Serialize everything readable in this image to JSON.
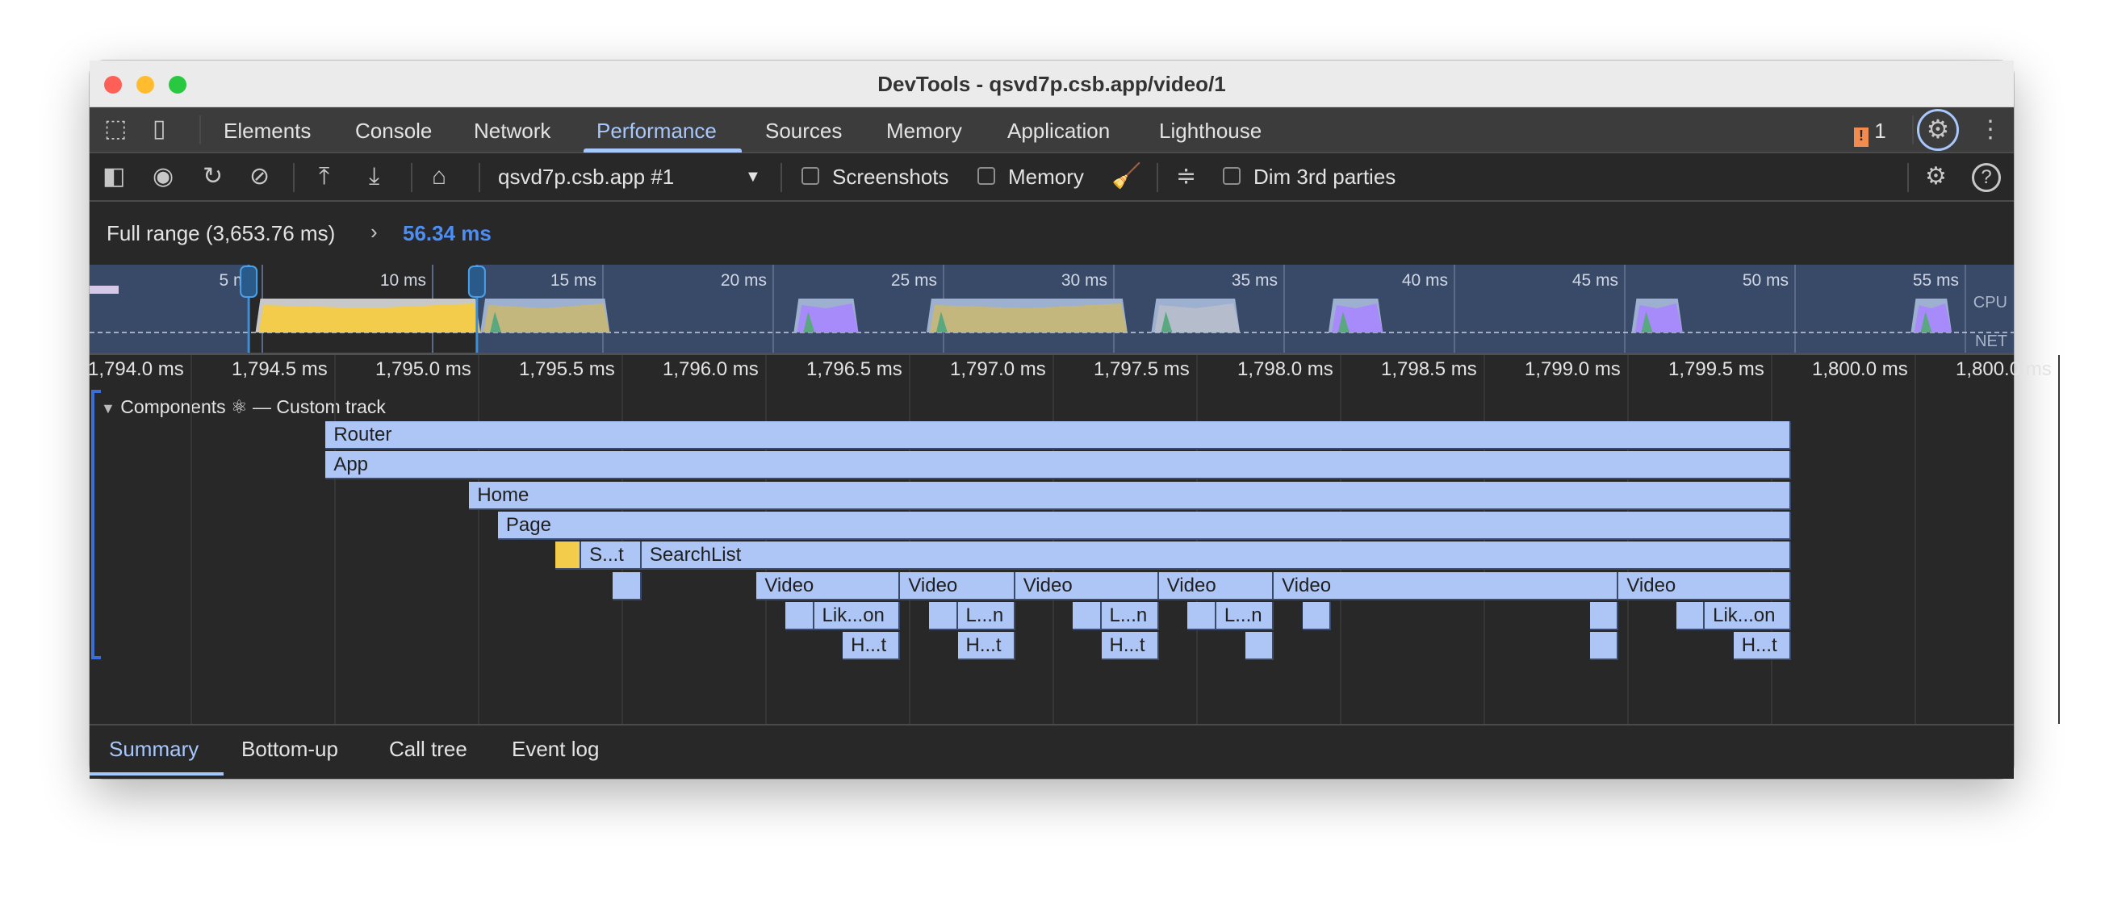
{
  "window": {
    "title": "DevTools - qsvd7p.csb.app/video/1",
    "traffic_lights": [
      "#fe5f57",
      "#febc2e",
      "#28c840"
    ]
  },
  "tabs": [
    {
      "label": "Elements"
    },
    {
      "label": "Console"
    },
    {
      "label": "Network"
    },
    {
      "label": "Performance",
      "active": true
    },
    {
      "label": "Sources"
    },
    {
      "label": "Memory"
    },
    {
      "label": "Application"
    },
    {
      "label": "Lighthouse"
    }
  ],
  "issues": {
    "count": "1",
    "color": "#f28b50"
  },
  "toolbar": {
    "target": "qsvd7p.csb.app #1",
    "screenshots": "Screenshots",
    "memory": "Memory",
    "dim": "Dim 3rd parties"
  },
  "breadcrumb": {
    "full": "Full range (3,653.76 ms)",
    "sep": "›",
    "current": "56.34 ms",
    "current_color": "#4c8df6"
  },
  "overview": {
    "ticks": [
      "5 ms",
      "10 ms",
      "15 ms",
      "20 ms",
      "25 ms",
      "30 ms",
      "35 ms",
      "40 ms",
      "45 ms",
      "50 ms",
      "55 ms"
    ],
    "cpu_label": "CPU",
    "net_label": "NET",
    "selection_ms": [
      4.6,
      11.3
    ],
    "activity": [
      {
        "from": 4.8,
        "to": 11.4,
        "color": "#f2cc4a"
      },
      {
        "from": 11.4,
        "to": 15.2,
        "color": "#c3b77d"
      },
      {
        "from": 20.6,
        "to": 22.5,
        "color": "#a78bfa"
      },
      {
        "from": 24.5,
        "to": 30.4,
        "color": "#c3b77d"
      },
      {
        "from": 31.1,
        "to": 33.7,
        "color": "#b5bccb"
      },
      {
        "from": 36.3,
        "to": 37.9,
        "color": "#a78bfa"
      },
      {
        "from": 45.2,
        "to": 46.7,
        "color": "#a78bfa"
      },
      {
        "from": 53.4,
        "to": 54.6,
        "color": "#a78bfa"
      }
    ]
  },
  "ruler": {
    "ticks": [
      "1,794.0 ms",
      "1,794.5 ms",
      "1,795.0 ms",
      "1,795.5 ms",
      "1,796.0 ms",
      "1,796.5 ms",
      "1,797.0 ms",
      "1,797.5 ms",
      "1,798.0 ms",
      "1,798.5 ms",
      "1,799.0 ms",
      "1,799.5 ms",
      "1,800.0 ms",
      "1,800.0 ms"
    ]
  },
  "track": {
    "title": "Components ⚛ — Custom track",
    "bars": [
      {
        "label": "Router",
        "depth": 0,
        "start": 1794.47,
        "end": 1799.57
      },
      {
        "label": "App",
        "depth": 1,
        "start": 1794.47,
        "end": 1799.57
      },
      {
        "label": "Home",
        "depth": 2,
        "start": 1794.97,
        "end": 1799.57
      },
      {
        "label": "Page",
        "depth": 3,
        "start": 1795.07,
        "end": 1799.57
      },
      {
        "label": "",
        "depth": 4,
        "start": 1795.27,
        "end": 1795.36,
        "color": "#f2cc4a"
      },
      {
        "label": "S...t",
        "depth": 4,
        "start": 1795.36,
        "end": 1795.57
      },
      {
        "label": "SearchList",
        "depth": 4,
        "start": 1795.57,
        "end": 1799.57
      },
      {
        "label": "",
        "depth": 5,
        "start": 1795.47,
        "end": 1795.57
      },
      {
        "label": "Video",
        "depth": 5,
        "start": 1795.97,
        "end": 1796.47
      },
      {
        "label": "Video",
        "depth": 5,
        "start": 1796.47,
        "end": 1796.87
      },
      {
        "label": "Video",
        "depth": 5,
        "start": 1796.87,
        "end": 1797.37
      },
      {
        "label": "Video",
        "depth": 5,
        "start": 1797.37,
        "end": 1797.77
      },
      {
        "label": "Video",
        "depth": 5,
        "start": 1797.77,
        "end": 1798.97
      },
      {
        "label": "Video",
        "depth": 5,
        "start": 1798.97,
        "end": 1799.57
      },
      {
        "label": "",
        "depth": 6,
        "start": 1796.07,
        "end": 1796.17
      },
      {
        "label": "Lik...on",
        "depth": 6,
        "start": 1796.17,
        "end": 1796.47
      },
      {
        "label": "",
        "depth": 6,
        "start": 1796.57,
        "end": 1796.67
      },
      {
        "label": "L...n",
        "depth": 6,
        "start": 1796.67,
        "end": 1796.87
      },
      {
        "label": "",
        "depth": 6,
        "start": 1797.07,
        "end": 1797.17
      },
      {
        "label": "L...n",
        "depth": 6,
        "start": 1797.17,
        "end": 1797.37
      },
      {
        "label": "",
        "depth": 6,
        "start": 1797.47,
        "end": 1797.57
      },
      {
        "label": "L...n",
        "depth": 6,
        "start": 1797.57,
        "end": 1797.77
      },
      {
        "label": "",
        "depth": 6,
        "start": 1797.87,
        "end": 1797.97
      },
      {
        "label": "",
        "depth": 6,
        "start": 1798.87,
        "end": 1798.97
      },
      {
        "label": "",
        "depth": 6,
        "start": 1799.17,
        "end": 1799.27
      },
      {
        "label": "Lik...on",
        "depth": 6,
        "start": 1799.27,
        "end": 1799.57
      },
      {
        "label": "H...t",
        "depth": 7,
        "start": 1796.27,
        "end": 1796.47
      },
      {
        "label": "H...t",
        "depth": 7,
        "start": 1796.67,
        "end": 1796.87
      },
      {
        "label": "H...t",
        "depth": 7,
        "start": 1797.17,
        "end": 1797.37
      },
      {
        "label": "",
        "depth": 7,
        "start": 1797.67,
        "end": 1797.77
      },
      {
        "label": "",
        "depth": 7,
        "start": 1798.87,
        "end": 1798.97
      },
      {
        "label": "H...t",
        "depth": 7,
        "start": 1799.37,
        "end": 1799.57
      }
    ]
  },
  "bottom_tabs": [
    {
      "label": "Summary",
      "active": true
    },
    {
      "label": "Bottom-up"
    },
    {
      "label": "Call tree"
    },
    {
      "label": "Event log"
    }
  ]
}
